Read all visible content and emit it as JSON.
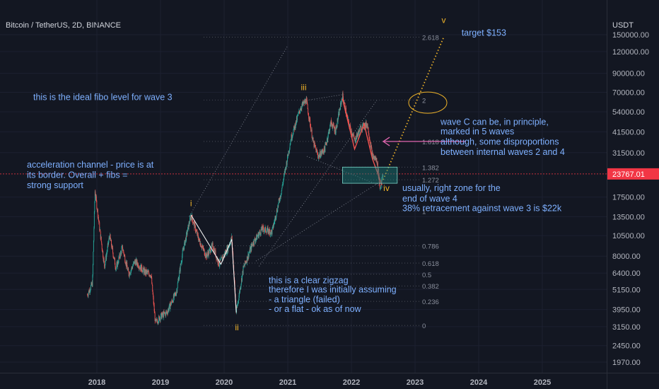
{
  "header": {
    "title": "Bitcoin / TetherUS, 2D, BINANCE",
    "currency": "USDT"
  },
  "price_tag": {
    "value": "23767.01",
    "color": "#f23645"
  },
  "colors": {
    "up": "#26a69a",
    "down": "#ef5350",
    "annotation_text": "#7eb0ff",
    "wave_label": "#f0b429",
    "fib_text": "#8a8f9c",
    "arrow_pink": "#e066b0",
    "zone_fill": "#1b7f79",
    "zone_border": "#7bd6c8"
  },
  "chart_data": {
    "type": "candlestick",
    "x_ticks": [
      "2018",
      "2019",
      "2020",
      "2021",
      "2022",
      "2023",
      "2024",
      "2025"
    ],
    "y_ticks": [
      "150000.00",
      "120000.00",
      "90000.00",
      "70000.00",
      "54000.00",
      "41500.00",
      "31500.00",
      "23767.01",
      "17500.00",
      "13500.00",
      "10500.00",
      "8000.00",
      "6400.00",
      "5150.00",
      "3950.00",
      "3150.00",
      "2450.00",
      "1970.00"
    ],
    "y_scale": "log",
    "fib_levels": [
      {
        "label": "2.618",
        "price": 145000
      },
      {
        "label": "2",
        "price": 63000
      },
      {
        "label": "1.618",
        "price": 36500
      },
      {
        "label": "1.382",
        "price": 26000
      },
      {
        "label": "1.272",
        "price": 22000
      },
      {
        "label": "1",
        "price": 14500
      },
      {
        "label": "0.786",
        "price": 9200
      },
      {
        "label": "0.618",
        "price": 7300
      },
      {
        "label": "0.5",
        "price": 6300
      },
      {
        "label": "0.382",
        "price": 5400
      },
      {
        "label": "0.236",
        "price": 4400
      },
      {
        "label": "0",
        "price": 3200
      }
    ],
    "price_path": [
      {
        "t": 2017.85,
        "price": 4800
      },
      {
        "t": 2017.93,
        "price": 5600
      },
      {
        "t": 2017.97,
        "price": 19000
      },
      {
        "t": 2018.05,
        "price": 11000
      },
      {
        "t": 2018.12,
        "price": 7000
      },
      {
        "t": 2018.2,
        "price": 10500
      },
      {
        "t": 2018.3,
        "price": 6800
      },
      {
        "t": 2018.4,
        "price": 9000
      },
      {
        "t": 2018.5,
        "price": 6300
      },
      {
        "t": 2018.6,
        "price": 7500
      },
      {
        "t": 2018.75,
        "price": 6500
      },
      {
        "t": 2018.85,
        "price": 6300
      },
      {
        "t": 2018.92,
        "price": 3300
      },
      {
        "t": 2019.0,
        "price": 3600
      },
      {
        "t": 2019.1,
        "price": 3800
      },
      {
        "t": 2019.25,
        "price": 5000
      },
      {
        "t": 2019.35,
        "price": 8500
      },
      {
        "t": 2019.48,
        "price": 13800
      },
      {
        "t": 2019.6,
        "price": 10000
      },
      {
        "t": 2019.72,
        "price": 8000
      },
      {
        "t": 2019.82,
        "price": 9200
      },
      {
        "t": 2019.92,
        "price": 7200
      },
      {
        "t": 2020.05,
        "price": 8800
      },
      {
        "t": 2020.12,
        "price": 10200
      },
      {
        "t": 2020.19,
        "price": 3800
      },
      {
        "t": 2020.3,
        "price": 6800
      },
      {
        "t": 2020.45,
        "price": 9500
      },
      {
        "t": 2020.6,
        "price": 11500
      },
      {
        "t": 2020.75,
        "price": 11000
      },
      {
        "t": 2020.9,
        "price": 19000
      },
      {
        "t": 2021.05,
        "price": 38000
      },
      {
        "t": 2021.2,
        "price": 57000
      },
      {
        "t": 2021.29,
        "price": 63000
      },
      {
        "t": 2021.4,
        "price": 36000
      },
      {
        "t": 2021.48,
        "price": 30000
      },
      {
        "t": 2021.58,
        "price": 33000
      },
      {
        "t": 2021.68,
        "price": 47000
      },
      {
        "t": 2021.75,
        "price": 42000
      },
      {
        "t": 2021.86,
        "price": 67000
      },
      {
        "t": 2021.95,
        "price": 47000
      },
      {
        "t": 2022.05,
        "price": 37000
      },
      {
        "t": 2022.15,
        "price": 44000
      },
      {
        "t": 2022.25,
        "price": 46000
      },
      {
        "t": 2022.33,
        "price": 30000
      },
      {
        "t": 2022.4,
        "price": 28500
      },
      {
        "t": 2022.45,
        "price": 19500
      },
      {
        "t": 2022.5,
        "price": 23767
      }
    ],
    "wave_labels": [
      {
        "text": "i",
        "t": 2019.48,
        "price": 15500
      },
      {
        "text": "ii",
        "t": 2020.2,
        "price": 3000
      },
      {
        "text": "iii",
        "t": 2021.25,
        "price": 72000
      },
      {
        "text": "iv",
        "t": 2022.55,
        "price": 19000
      },
      {
        "text": "v",
        "t": 2023.45,
        "price": 175000
      }
    ],
    "annotations": [
      {
        "text": "target $153",
        "t": 2023.73,
        "price": 148000
      },
      {
        "text": "this is the ideal fibo level for wave 3",
        "t": 2017.0,
        "price": 63000
      },
      {
        "text": "wave C can be, in principle,",
        "t": 2023.4,
        "price": 45500
      },
      {
        "text": "marked in 5 waves",
        "t": 2023.4,
        "price": 40000
      },
      {
        "text": "although, some disproportions",
        "t": 2023.4,
        "price": 35000
      },
      {
        "text": "between internal waves 2 and 4",
        "t": 2023.4,
        "price": 30500
      },
      {
        "text": "acceleration channel - price is at",
        "t": 2016.9,
        "price": 25800
      },
      {
        "text": "its border. Overall + fibs =",
        "t": 2016.9,
        "price": 22500
      },
      {
        "text": "strong support",
        "t": 2016.9,
        "price": 19700
      },
      {
        "text": "usually, right zone for the",
        "t": 2022.8,
        "price": 19000
      },
      {
        "text": "end of wave 4",
        "t": 2022.8,
        "price": 16500
      },
      {
        "text": "38% retracement against wave 3 is $22k",
        "t": 2022.8,
        "price": 14500
      },
      {
        "text": "this is a clear zigzag",
        "t": 2020.7,
        "price": 5600
      },
      {
        "text": "therefore I was initially assuming",
        "t": 2020.7,
        "price": 4950
      },
      {
        "text": "- a triangle (failed)",
        "t": 2020.7,
        "price": 4350
      },
      {
        "text": "- or a flat - ok as of now",
        "t": 2020.7,
        "price": 3820
      }
    ]
  }
}
